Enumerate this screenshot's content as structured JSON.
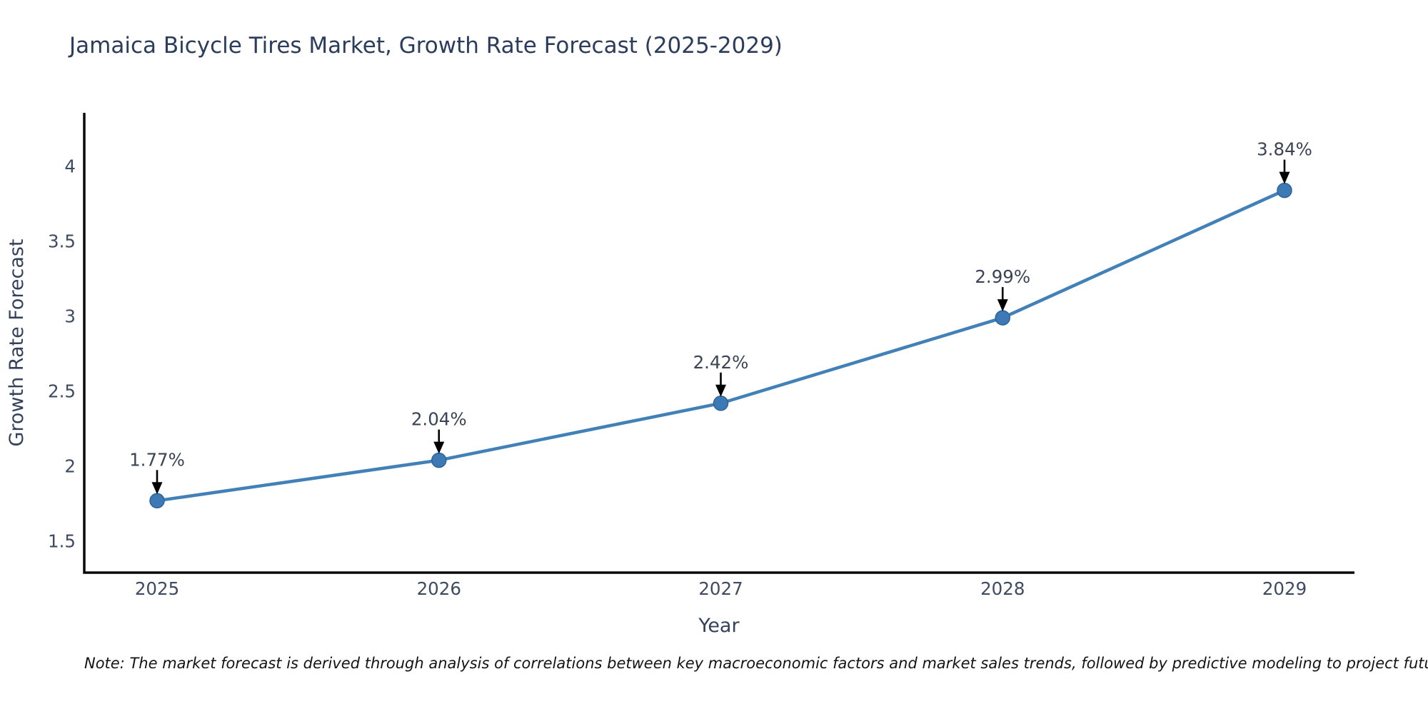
{
  "note": "Note: The market forecast is derived through analysis of correlations between key macroeconomic factors and market sales trends, followed by predictive modeling to project future sales",
  "chart_data": {
    "type": "line",
    "title": "Jamaica Bicycle Tires Market, Growth Rate Forecast (2025-2029)",
    "xlabel": "Year",
    "ylabel": "Growth Rate Forecast",
    "categories": [
      "2025",
      "2026",
      "2027",
      "2028",
      "2029"
    ],
    "values": [
      1.77,
      2.04,
      2.42,
      2.99,
      3.84
    ],
    "point_labels": [
      "1.77%",
      "2.04%",
      "2.42%",
      "2.99%",
      "3.84%"
    ],
    "ytick_values": [
      4,
      3.5,
      3,
      2.5,
      2,
      1.5
    ],
    "ytick_labels": [
      "4",
      "3.5",
      "3",
      "2.5",
      "2",
      "1.5"
    ],
    "ylim": [
      1.29,
      4.36
    ],
    "grid": false,
    "legend": "none",
    "annotation_style": "text above point with downward black arrow",
    "colors": {
      "line": "#4181b8",
      "marker": "#3d7ab5",
      "marker_edge": "#2e6396",
      "annotation_arrow": "#000000",
      "annotation_text": "#3a4454",
      "axis_spine": "#0a0a0a",
      "tick_label": "#3f4b61",
      "axis_label": "#33415c",
      "title": "#2b3c5c"
    }
  }
}
